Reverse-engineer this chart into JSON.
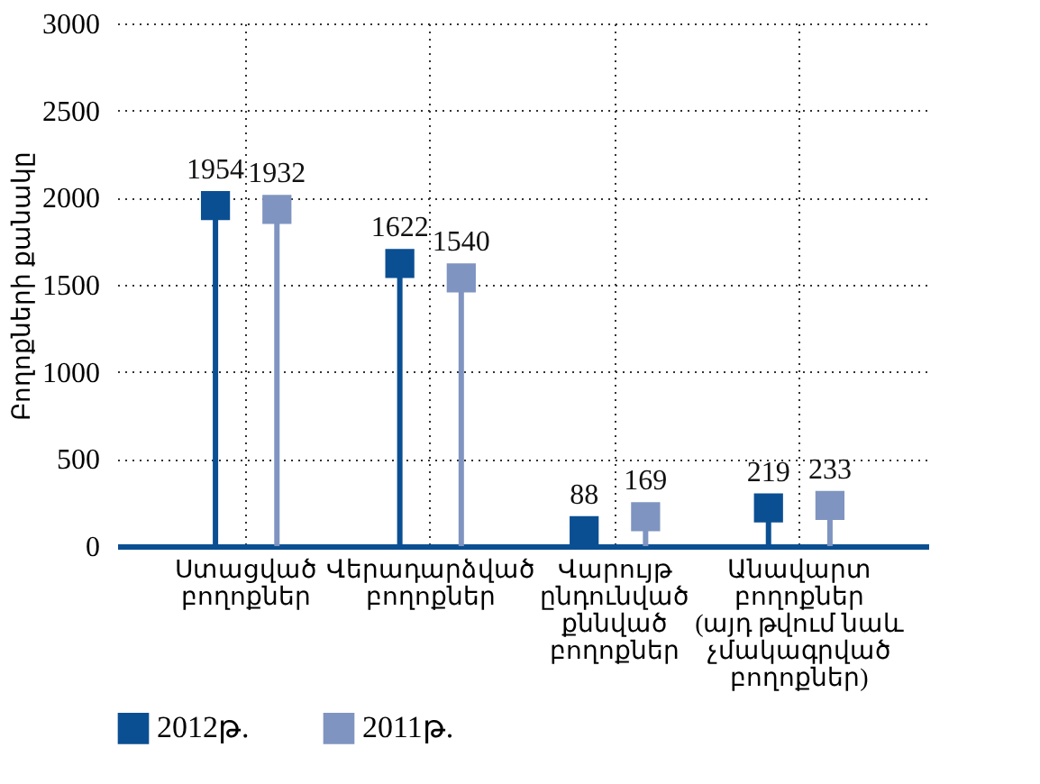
{
  "chart_data": {
    "type": "lollipop",
    "ylabel": "Բողոքների քանակը",
    "categories": [
      "Ստացված\nբողոքներ",
      "Վերադարձված\nբողոքներ",
      "Վարույթ\nընդունված\nքննված\nբողոքներ",
      "Անավարտ\nբողոքներ\n(այդ թվում նաև\nչմակագրված\nբողոքներ)"
    ],
    "series": [
      {
        "name": "2012թ.",
        "color": "#0b4f93",
        "values": [
          1954,
          1622,
          88,
          219
        ]
      },
      {
        "name": "2011թ.",
        "color": "#7f94c0",
        "values": [
          1932,
          1540,
          169,
          233
        ]
      }
    ],
    "ylim": [
      0,
      3000
    ],
    "yticks": [
      0,
      500,
      1000,
      1500,
      2000,
      2500,
      3000
    ],
    "grid": true,
    "legend": "bottom left",
    "marker": "square",
    "data_labels": true
  }
}
